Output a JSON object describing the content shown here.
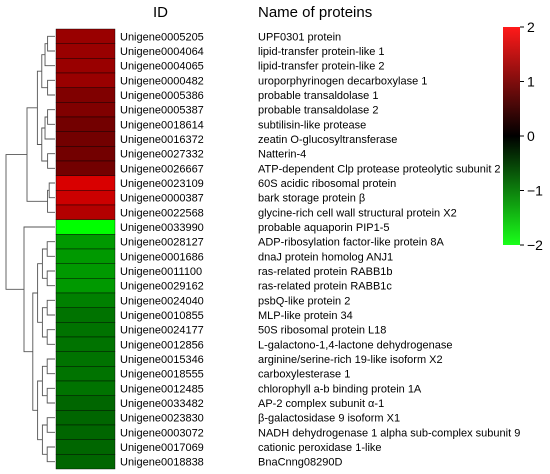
{
  "header": {
    "id_label": "ID",
    "name_label": "Name of proteins"
  },
  "chart_data": {
    "type": "heatmap",
    "title": "",
    "legend": {
      "ticks": [
        2,
        1,
        0,
        -1,
        -2
      ],
      "range": [
        -2,
        2
      ],
      "colors": {
        "high": "#ff1a1a",
        "mid": "#000000",
        "low": "#1aff1a"
      }
    },
    "rows": [
      {
        "id": "Unigene0005205",
        "name": "UPF0301 protein",
        "value": 1.2
      },
      {
        "id": "Unigene0004064",
        "name": "lipid-transfer protein-like 1",
        "value": 1.2
      },
      {
        "id": "Unigene0004065",
        "name": "lipid-transfer protein-like 2",
        "value": 1.2
      },
      {
        "id": "Unigene0000482",
        "name": "uroporphyrinogen decarboxylase 1",
        "value": 1.2
      },
      {
        "id": "Unigene0005386",
        "name": "probable transaldolase 1",
        "value": 1.0
      },
      {
        "id": "Unigene0005387",
        "name": "probable transaldolase 2",
        "value": 1.0
      },
      {
        "id": "Unigene0018614",
        "name": "subtilisin-like protease",
        "value": 0.9
      },
      {
        "id": "Unigene0016372",
        "name": "zeatin O-glucosyltransferase",
        "value": 0.9
      },
      {
        "id": "Unigene0027332",
        "name": "Natterin-4",
        "value": 0.9
      },
      {
        "id": "Unigene0026667",
        "name": "ATP-dependent Clp protease proteolytic subunit 2",
        "value": 0.9
      },
      {
        "id": "Unigene0023109",
        "name": "60S acidic ribosomal protein",
        "value": 1.7
      },
      {
        "id": "Unigene0000387",
        "name": "bark storage protein β",
        "value": 1.6
      },
      {
        "id": "Unigene0022568",
        "name": "glycine-rich cell wall structural protein X2",
        "value": 1.4
      },
      {
        "id": "Unigene0033990",
        "name": "probable aquaporin PIP1-5",
        "value": -2.0
      },
      {
        "id": "Unigene0028127",
        "name": "ADP-ribosylation factor-like protein 8A",
        "value": -1.2
      },
      {
        "id": "Unigene0001686",
        "name": "dnaJ protein homolog ANJ1",
        "value": -1.2
      },
      {
        "id": "Unigene0011100",
        "name": "ras-related protein RABB1b",
        "value": -1.2
      },
      {
        "id": "Unigene0029162",
        "name": "ras-related protein RABB1c",
        "value": -1.2
      },
      {
        "id": "Unigene0024040",
        "name": "psbQ-like protein 2",
        "value": -1.0
      },
      {
        "id": "Unigene0010855",
        "name": "MLP-like protein 34",
        "value": -0.9
      },
      {
        "id": "Unigene0024177",
        "name": "50S ribosomal protein L18",
        "value": -0.9
      },
      {
        "id": "Unigene0012856",
        "name": "L-galactono-1,4-lactone dehydrogenase",
        "value": -0.9
      },
      {
        "id": "Unigene0015346",
        "name": "arginine/serine-rich 19-like isoform X2",
        "value": -0.9
      },
      {
        "id": "Unigene0018555",
        "name": "carboxylesterase 1",
        "value": -0.9
      },
      {
        "id": "Unigene0012485",
        "name": "chlorophyll a-b binding protein 1A",
        "value": -0.9
      },
      {
        "id": "Unigene0033482",
        "name": "AP-2 complex subunit α-1",
        "value": -0.8
      },
      {
        "id": "Unigene0023830",
        "name": "β-galactosidase 9 isoform X1",
        "value": -0.8
      },
      {
        "id": "Unigene0003072",
        "name": "NADH dehydrogenase 1 alpha sub-complex subunit 9",
        "value": -0.8
      },
      {
        "id": "Unigene0017069",
        "name": "cationic peroxidase 1-like",
        "value": -0.8
      },
      {
        "id": "Unigene0018838",
        "name": "BnaCnng08290D",
        "value": -0.8
      }
    ]
  }
}
